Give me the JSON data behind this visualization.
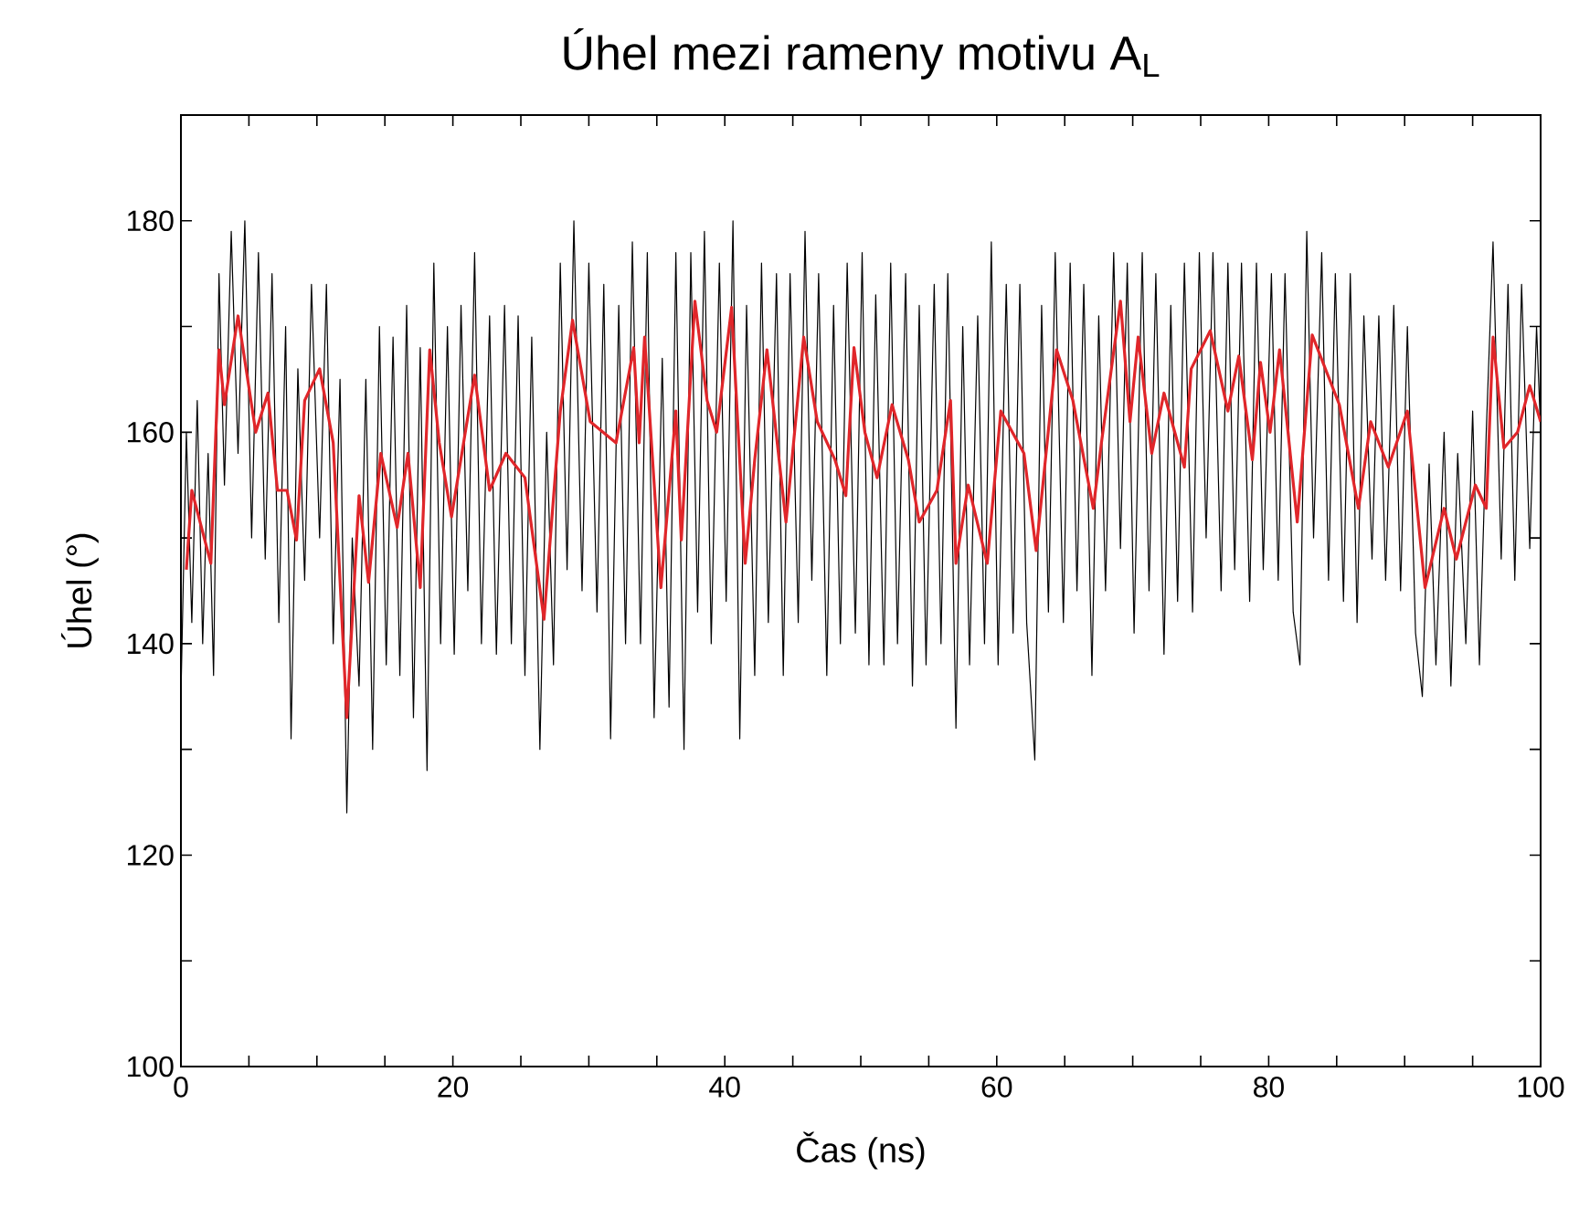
{
  "chart_data": {
    "type": "line",
    "title": "Úhel mezi rameny motivu A$_{L}$",
    "xlabel": "Čas (ns)",
    "ylabel": "Úhel (°)",
    "xlim": [
      0,
      100
    ],
    "ylim": [
      100,
      190
    ],
    "xticks": [
      0,
      {
        "value": 5,
        "label": null
      },
      {
        "value": 10,
        "label": null
      },
      {
        "value": 15,
        "label": null
      },
      20,
      {
        "value": 25,
        "label": null
      },
      {
        "value": 30,
        "label": null
      },
      {
        "value": 35,
        "label": null
      },
      40,
      {
        "value": 45,
        "label": null
      },
      {
        "value": 50,
        "label": null
      },
      {
        "value": 55,
        "label": null
      },
      60,
      {
        "value": 65,
        "label": null
      },
      {
        "value": 70,
        "label": null
      },
      {
        "value": 75,
        "label": null
      },
      80,
      {
        "value": 85,
        "label": null
      },
      {
        "value": 90,
        "label": null
      },
      {
        "value": 95,
        "label": null
      },
      100
    ],
    "yticks": [
      100,
      {
        "value": 110,
        "label": null
      },
      120,
      {
        "value": 130,
        "label": null
      },
      140,
      {
        "value": 150,
        "label": null
      },
      160,
      {
        "value": 170,
        "label": null
      },
      180
    ],
    "grid": false,
    "marker": "none",
    "line_style": "solid",
    "series": [
      {
        "color": "#000000",
        "x": [
          0,
          0.4,
          0.8,
          1.2,
          1.6,
          2,
          2.4,
          2.8,
          3.2,
          3.7,
          4.2,
          4.7,
          5.2,
          5.7,
          6.2,
          6.7,
          7.2,
          7.7,
          8.1,
          8.6,
          9.1,
          9.6,
          10.2,
          10.7,
          11.2,
          11.7,
          12.2,
          12.6,
          13.1,
          13.6,
          14.1,
          14.6,
          15.1,
          15.6,
          16.1,
          16.6,
          17.1,
          17.6,
          18.1,
          18.6,
          19.1,
          19.6,
          20.1,
          20.6,
          21.1,
          21.6,
          22.1,
          22.7,
          23.2,
          23.8,
          24.3,
          24.8,
          25.3,
          25.8,
          26.4,
          26.9,
          27.4,
          27.9,
          28.4,
          28.9,
          29.5,
          30,
          30.6,
          31.1,
          31.6,
          32.2,
          32.7,
          33.2,
          33.8,
          34.3,
          34.8,
          35.4,
          35.9,
          36.4,
          37,
          37.5,
          38,
          38.5,
          39,
          39.6,
          40.1,
          40.6,
          41.1,
          41.6,
          42.2,
          42.7,
          43.2,
          43.8,
          44.3,
          44.8,
          45.4,
          45.9,
          46.4,
          46.9,
          47.5,
          48,
          48.5,
          49,
          49.6,
          50.1,
          50.6,
          51.1,
          51.7,
          52.2,
          52.7,
          53.3,
          53.8,
          54.3,
          54.8,
          55.4,
          55.9,
          56.4,
          57,
          57.5,
          58,
          58.6,
          59.1,
          59.6,
          60.1,
          60.7,
          61.2,
          61.7,
          62.2,
          62.8,
          63.3,
          63.8,
          64.3,
          64.9,
          65.4,
          65.9,
          66.4,
          67,
          67.5,
          68,
          68.6,
          69.1,
          69.6,
          70.1,
          70.7,
          71.2,
          71.7,
          72.3,
          72.8,
          73.3,
          73.8,
          74.4,
          74.9,
          75.4,
          75.9,
          76.5,
          77,
          77.5,
          78,
          78.6,
          79.1,
          79.6,
          80.2,
          80.7,
          81.2,
          81.8,
          82.3,
          82.8,
          83.3,
          83.9,
          84.4,
          84.9,
          85.5,
          86,
          86.5,
          87,
          87.6,
          88.1,
          88.6,
          89.2,
          89.7,
          90.2,
          90.8,
          91.3,
          91.8,
          92.3,
          92.9,
          93.4,
          93.9,
          94.5,
          95,
          95.5,
          96,
          96.5,
          97.1,
          97.6,
          98.1,
          98.6,
          99.2,
          99.7,
          100
        ],
        "values": [
          135,
          160,
          142,
          163,
          140,
          158,
          137,
          175,
          155,
          179,
          158,
          180,
          150,
          177,
          148,
          175,
          142,
          170,
          131,
          166,
          146,
          174,
          150,
          174,
          140,
          165,
          124,
          150,
          136,
          165,
          130,
          170,
          138,
          169,
          137,
          172,
          133,
          168,
          128,
          176,
          140,
          170,
          139,
          172,
          145,
          177,
          140,
          171,
          139,
          172,
          140,
          171,
          137,
          169,
          130,
          160,
          138,
          176,
          147,
          180,
          145,
          176,
          143,
          174,
          131,
          172,
          140,
          178,
          140,
          177,
          133,
          167,
          134,
          177,
          130,
          177,
          143,
          179,
          140,
          176,
          144,
          180,
          131,
          172,
          137,
          176,
          142,
          175,
          137,
          175,
          142,
          179,
          146,
          175,
          137,
          172,
          140,
          176,
          141,
          177,
          138,
          173,
          138,
          176,
          140,
          175,
          136,
          172,
          138,
          174,
          140,
          175,
          132,
          170,
          138,
          171,
          140,
          178,
          138,
          174,
          141,
          174,
          142,
          129,
          172,
          143,
          177,
          142,
          176,
          145,
          174,
          137,
          171,
          145,
          177,
          149,
          176,
          141,
          177,
          145,
          175,
          139,
          172,
          144,
          176,
          143,
          177,
          150,
          177,
          145,
          176,
          147,
          176,
          144,
          176,
          147,
          175,
          146,
          175,
          143,
          138,
          179,
          150,
          177,
          146,
          175,
          144,
          175,
          142,
          171,
          148,
          171,
          146,
          172,
          145,
          170,
          141,
          135,
          157,
          138,
          160,
          136,
          158,
          140,
          162,
          138,
          160,
          178,
          148,
          174,
          146,
          174,
          149,
          170,
          160
        ]
      },
      {
        "color": "#e0262a",
        "x": [
          0.4,
          0.8,
          2.2,
          2.8,
          3.2,
          4.2,
          5.5,
          6.4,
          7.1,
          7.8,
          8.5,
          9.1,
          10.2,
          11.2,
          12.2,
          13.1,
          13.8,
          14.7,
          15.9,
          16.7,
          17.6,
          18.3,
          19,
          19.9,
          21.6,
          22.7,
          23.9,
          25.3,
          26.7,
          27.9,
          28.8,
          30.1,
          32,
          33.3,
          33.7,
          34.1,
          35.3,
          36.4,
          36.8,
          37.8,
          38.7,
          39.4,
          40.5,
          41.5,
          42.2,
          43.1,
          44.5,
          45.8,
          46.8,
          48.1,
          48.9,
          49.5,
          50.3,
          51.2,
          52.3,
          53.5,
          54.3,
          55.6,
          56.6,
          57,
          57.9,
          59.3,
          60.3,
          62,
          62.9,
          64.4,
          65.6,
          67.1,
          67.7,
          69.1,
          69.8,
          70.4,
          71.4,
          72.3,
          73.8,
          74.3,
          75.7,
          77,
          77.8,
          78.8,
          79.4,
          80.1,
          80.8,
          82.1,
          83.2,
          85.2,
          86.6,
          87.5,
          88.8,
          90.2,
          91.5,
          92.9,
          93.8,
          95.2,
          96,
          96.5,
          97.3,
          98.3,
          99.2,
          100
        ],
        "values": [
          147,
          154.5,
          147.6,
          167.8,
          162.6,
          171,
          160,
          163.7,
          154.5,
          154.5,
          149.8,
          163,
          166,
          159,
          133,
          154,
          145.8,
          158,
          151,
          158,
          145.3,
          167.8,
          159,
          152,
          165.4,
          154.5,
          158,
          155.7,
          142.3,
          162,
          170.6,
          161,
          159,
          168,
          159,
          169,
          145.3,
          162,
          149.8,
          172.4,
          163,
          160,
          171.8,
          147.6,
          157.4,
          167.8,
          151.5,
          169,
          161,
          157.4,
          154,
          168,
          160,
          155.7,
          162.6,
          157.4,
          151.5,
          154.5,
          163,
          147.6,
          155,
          147.6,
          162,
          158,
          148.8,
          167.8,
          163,
          152.8,
          159,
          172.4,
          161,
          169,
          158,
          163.7,
          156.7,
          166,
          169.6,
          162,
          167.2,
          157.4,
          166.6,
          160,
          167.8,
          151.5,
          169.2,
          162.6,
          152.8,
          161,
          156.7,
          162,
          145.3,
          152.8,
          148,
          155,
          152.8,
          169,
          158.5,
          160,
          164.4,
          161
        ]
      }
    ]
  }
}
